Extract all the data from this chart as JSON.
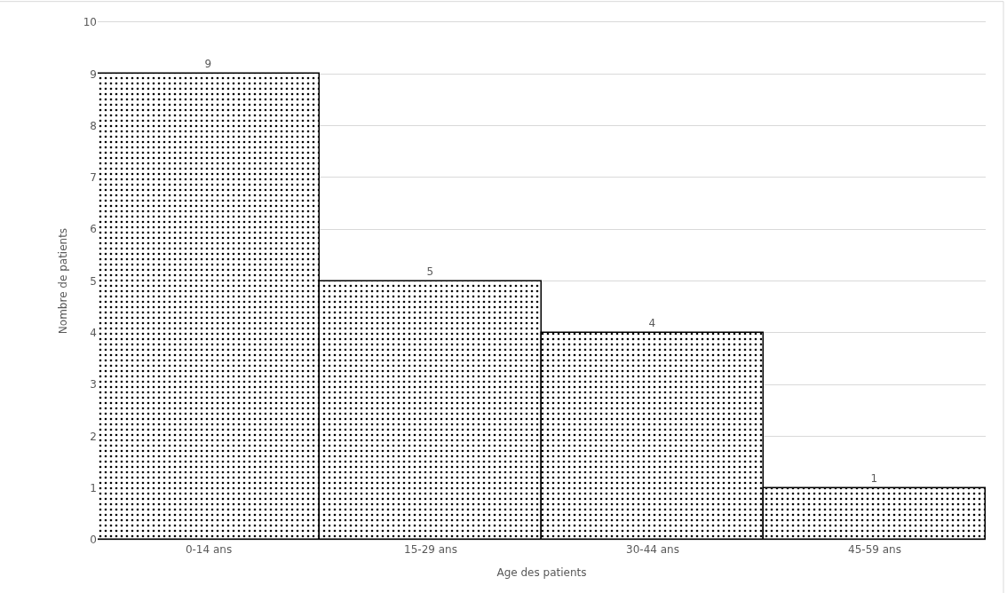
{
  "chart_data": {
    "type": "bar",
    "xlabel": "Age des patients",
    "ylabel": "Nombre de patients",
    "categories": [
      "0-14 ans",
      "15-29 ans",
      "30-44 ans",
      "45-59 ans"
    ],
    "values": [
      9,
      5,
      4,
      1
    ],
    "color": "#000000",
    "ylim": [
      0,
      10
    ],
    "yticks": [
      0,
      1,
      2,
      3,
      4,
      5,
      6,
      7,
      8,
      9,
      10
    ],
    "grid": "y",
    "data_labels": true,
    "legend": false
  }
}
